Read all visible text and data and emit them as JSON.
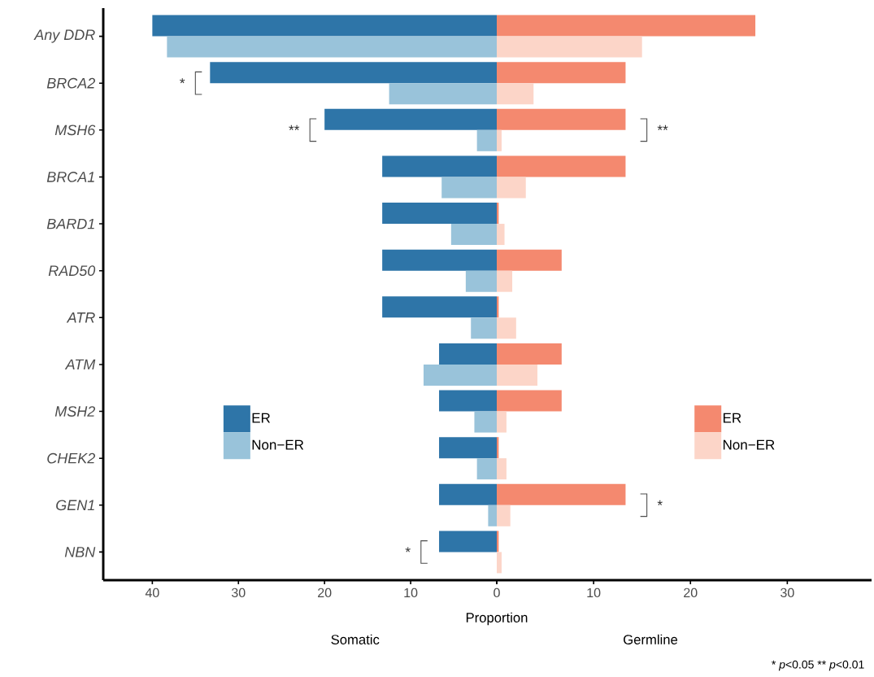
{
  "chart_data": [
    {
      "type": "bar",
      "orientation": "horizontal",
      "xlabel": "Somatic",
      "legend": "left",
      "categories": [
        "Any DDR",
        "BRCA2",
        "MSH6",
        "BRCA1",
        "BARD1",
        "RAD50",
        "ATR",
        "ATM",
        "MSH2",
        "CHEK2",
        "GEN1",
        "NBN"
      ],
      "series": [
        {
          "name": "ER",
          "color": "#2e75a8",
          "values": [
            40,
            33.3,
            20,
            13.3,
            13.3,
            13.3,
            13.3,
            6.7,
            6.7,
            6.7,
            6.7,
            6.7
          ]
        },
        {
          "name": "Non−ER",
          "color": "#99c3da",
          "values": [
            38.3,
            12.5,
            2.3,
            6.4,
            5.3,
            3.6,
            3.0,
            8.5,
            2.6,
            2.3,
            1.0,
            null
          ]
        }
      ],
      "xlim": [
        45.7,
        0
      ],
      "xticks": [
        0,
        10,
        20,
        30,
        40
      ],
      "annotations": [
        "Proportion",
        "*",
        "**",
        "*"
      ]
    },
    {
      "type": "bar",
      "orientation": "horizontal",
      "xlabel": "Germline",
      "legend": "right",
      "tick_labels": "x",
      "categories": [
        null,
        null,
        null,
        null,
        null,
        null,
        null,
        null,
        null,
        null,
        null,
        null
      ],
      "series": [
        {
          "name": "ER",
          "color": "#f4896f",
          "values": [
            26.7,
            13.3,
            13.3,
            13.3,
            0.2,
            6.7,
            0.2,
            6.7,
            6.7,
            0.2,
            13.3,
            0.2
          ]
        },
        {
          "name": "Non−ER",
          "color": "#fcd5c8",
          "values": [
            15.0,
            3.8,
            0.5,
            3.0,
            0.8,
            1.6,
            2.0,
            4.2,
            1.0,
            1.0,
            1.4,
            0.5
          ]
        }
      ],
      "xlim": [
        0,
        38.7
      ],
      "xticks": [
        {
          "value": 0,
          "label": null
        },
        10,
        20,
        30
      ],
      "annotations": [
        "**",
        "*",
        "* *p*<0.05   ** *p*<0.01"
      ]
    }
  ]
}
